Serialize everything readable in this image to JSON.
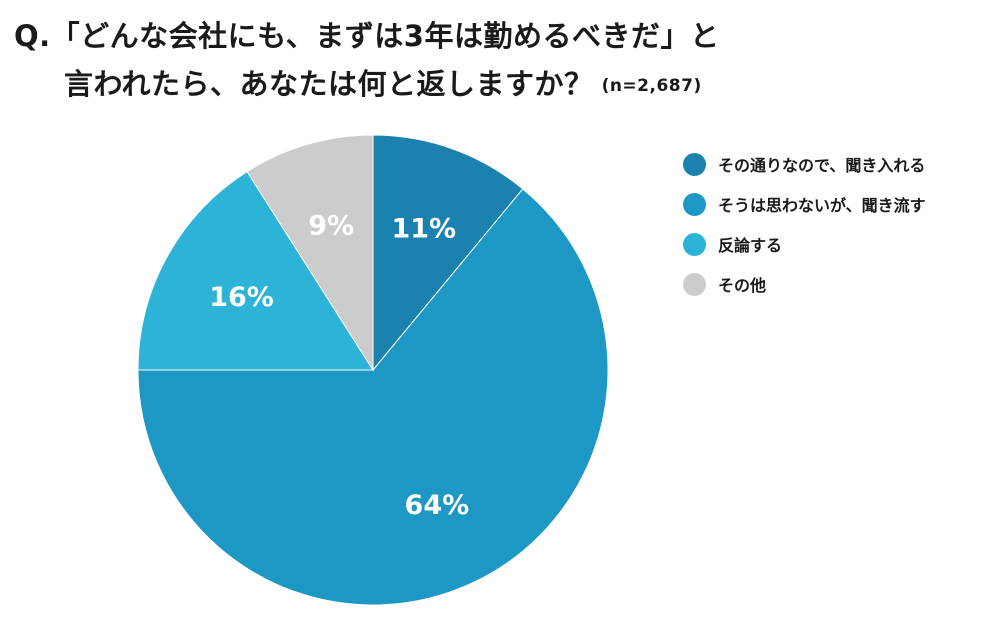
{
  "title": {
    "line1": "Q.「どんな会社にも、まずは3年は勤めるべきだ」と",
    "line2": "言われたら、あなたは何と返しますか？",
    "sample_size": "(n=2,687)"
  },
  "chart_data": {
    "type": "pie",
    "title": "Q.「どんな会社にも、まずは3年は勤めるべきだ」と言われたら、あなたは何と返しますか？ (n=2,687)",
    "slices": [
      {
        "name": "その通りなので、聞き入れる",
        "value": 11,
        "label": "11%",
        "color": "#1b82b0"
      },
      {
        "name": "そうは思わないが、聞き流す",
        "value": 64,
        "label": "64%",
        "color": "#1d97c4"
      },
      {
        "name": "反論する",
        "value": 16,
        "label": "16%",
        "color": "#2eb3d8"
      },
      {
        "name": "その他",
        "value": 9,
        "label": "9%",
        "color": "#cccccc"
      }
    ],
    "start": "12 o'clock",
    "direction": "clockwise",
    "legend_position": "right"
  }
}
